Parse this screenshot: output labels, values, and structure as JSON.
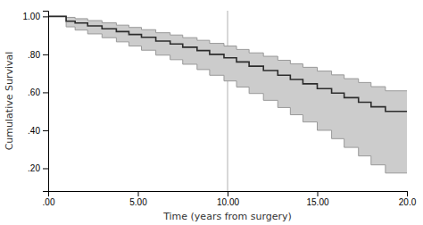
{
  "chart_data": {
    "type": "step",
    "title": "",
    "xlabel": "Time (years from surgery)",
    "ylabel": "Cumulative Survival",
    "xlim": [
      0,
      20
    ],
    "ylim": [
      0.08,
      1.03
    ],
    "xticks": [
      {
        "value": 0,
        "label": ".00"
      },
      {
        "value": 5.0,
        "label": "5.00"
      },
      {
        "value": 10.0,
        "label": "10.00"
      },
      {
        "value": 15.0,
        "label": "15.00"
      },
      {
        "value": 20.0,
        "label": "20.0"
      }
    ],
    "yticks": [
      {
        "value": 0.2,
        "label": ".20"
      },
      {
        "value": 0.4,
        "label": ".40"
      },
      {
        "value": 0.6,
        "label": ".60"
      },
      {
        "value": 0.8,
        "label": ".80"
      },
      {
        "value": 1.0,
        "label": "1.00"
      }
    ],
    "grid": false,
    "x": [
      0,
      1.0,
      1.5,
      2.2,
      3.0,
      3.8,
      4.5,
      5.2,
      6.0,
      6.8,
      7.5,
      8.3,
      9.0,
      9.8,
      10.5,
      11.2,
      12.0,
      12.8,
      13.5,
      14.2,
      15.0,
      15.8,
      16.5,
      17.3,
      18.0,
      18.8,
      20.0
    ],
    "series": [
      {
        "type": "band",
        "color": "#cccccc",
        "upper": [
          1.0,
          0.995,
          0.988,
          0.978,
          0.966,
          0.954,
          0.942,
          0.93,
          0.914,
          0.902,
          0.888,
          0.874,
          0.858,
          0.844,
          0.826,
          0.808,
          0.79,
          0.769,
          0.75,
          0.732,
          0.712,
          0.692,
          0.672,
          0.652,
          0.63,
          0.608,
          0.608
        ],
        "lower": [
          1.0,
          0.945,
          0.928,
          0.908,
          0.888,
          0.866,
          0.844,
          0.822,
          0.796,
          0.772,
          0.748,
          0.72,
          0.69,
          0.66,
          0.628,
          0.594,
          0.558,
          0.52,
          0.482,
          0.444,
          0.4,
          0.356,
          0.31,
          0.265,
          0.218,
          0.175,
          0.175
        ]
      },
      {
        "type": "step",
        "color": "#999999",
        "values": [
          1.0,
          0.995,
          0.988,
          0.978,
          0.966,
          0.954,
          0.942,
          0.93,
          0.914,
          0.902,
          0.888,
          0.874,
          0.858,
          0.844,
          0.826,
          0.808,
          0.79,
          0.769,
          0.75,
          0.732,
          0.712,
          0.692,
          0.672,
          0.652,
          0.63,
          0.608,
          0.608
        ]
      },
      {
        "type": "step",
        "color": "#999999",
        "values": [
          1.0,
          0.945,
          0.928,
          0.908,
          0.888,
          0.866,
          0.844,
          0.822,
          0.796,
          0.772,
          0.748,
          0.72,
          0.69,
          0.66,
          0.628,
          0.594,
          0.558,
          0.52,
          0.482,
          0.444,
          0.4,
          0.356,
          0.31,
          0.265,
          0.218,
          0.175,
          0.175
        ]
      },
      {
        "type": "step",
        "color": "#2c2c2c",
        "values": [
          1.0,
          0.975,
          0.965,
          0.95,
          0.935,
          0.92,
          0.905,
          0.89,
          0.87,
          0.855,
          0.838,
          0.82,
          0.8,
          0.782,
          0.76,
          0.738,
          0.715,
          0.69,
          0.668,
          0.645,
          0.62,
          0.596,
          0.572,
          0.548,
          0.524,
          0.5,
          0.5
        ]
      }
    ],
    "reference_lines": [
      {
        "x": 10.0,
        "color": "#b0b0b0"
      }
    ]
  }
}
